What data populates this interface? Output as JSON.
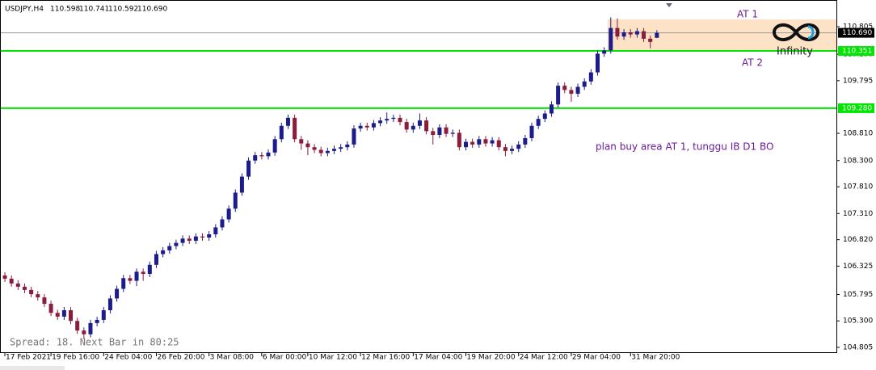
{
  "chart_data": {
    "type": "candlestick",
    "title": "USDJPY,H4",
    "last_bar": [
      "110.598",
      "110.741",
      "110.592",
      "110.690"
    ],
    "up_color": "#1c1c8c",
    "down_color": "#8b1c3c",
    "open": [
      106.15,
      106.09,
      106.0,
      105.94,
      105.88,
      105.8,
      105.74,
      105.62,
      105.45,
      105.38,
      105.5,
      105.3,
      105.12,
      105.05,
      105.26,
      105.32,
      105.5,
      105.72,
      105.9,
      106.1,
      106.05,
      106.22,
      106.18,
      106.35,
      106.55,
      106.62,
      106.7,
      106.76,
      106.84,
      106.8,
      106.88,
      106.86,
      106.92,
      107.05,
      107.2,
      107.4,
      107.7,
      108.0,
      108.3,
      108.4,
      108.38,
      108.45,
      108.7,
      108.95,
      109.1,
      108.7,
      108.62,
      108.55,
      108.5,
      108.44,
      108.48,
      108.52,
      108.55,
      108.6,
      108.9,
      108.95,
      108.92,
      109.0,
      109.05,
      109.08,
      109.1,
      109.02,
      108.88,
      108.95,
      109.05,
      108.85,
      108.78,
      108.92,
      108.8,
      108.82,
      108.55,
      108.65,
      108.6,
      108.7,
      108.62,
      108.68,
      108.55,
      108.48,
      108.52,
      108.6,
      108.72,
      108.95,
      109.08,
      109.18,
      109.35,
      109.7,
      109.62,
      109.55,
      109.68,
      109.78,
      109.95,
      110.3,
      110.36,
      110.78,
      110.62,
      110.7,
      110.66,
      110.72,
      110.58,
      110.598
    ],
    "high": [
      106.21,
      106.15,
      106.06,
      106.0,
      105.94,
      105.86,
      105.8,
      105.68,
      105.51,
      105.56,
      105.56,
      105.36,
      105.18,
      105.32,
      105.38,
      105.56,
      105.78,
      105.96,
      106.16,
      106.16,
      106.28,
      106.28,
      106.41,
      106.61,
      106.68,
      106.76,
      106.82,
      106.9,
      106.9,
      106.94,
      106.94,
      106.98,
      107.11,
      107.26,
      107.46,
      107.76,
      108.06,
      108.36,
      108.46,
      108.46,
      108.51,
      108.76,
      109.01,
      109.16,
      109.16,
      108.76,
      108.68,
      108.61,
      108.56,
      108.54,
      108.58,
      108.61,
      108.66,
      108.96,
      109.01,
      109.01,
      109.06,
      109.11,
      109.2,
      109.16,
      109.16,
      109.08,
      109.01,
      109.18,
      109.11,
      108.91,
      108.98,
      108.98,
      108.88,
      108.88,
      108.71,
      108.71,
      108.76,
      108.76,
      108.74,
      108.74,
      108.61,
      108.58,
      108.66,
      108.78,
      109.01,
      109.14,
      109.24,
      109.41,
      109.76,
      109.76,
      109.68,
      109.74,
      109.84,
      110.01,
      110.36,
      110.42,
      110.98,
      110.96,
      110.76,
      110.76,
      110.78,
      110.78,
      110.64,
      110.741
    ],
    "low": [
      106.03,
      105.94,
      105.88,
      105.82,
      105.74,
      105.68,
      105.56,
      105.39,
      105.32,
      105.32,
      105.24,
      105.06,
      104.96,
      104.99,
      105.2,
      105.26,
      105.44,
      105.66,
      105.84,
      105.99,
      105.95,
      106.05,
      106.12,
      106.29,
      106.49,
      106.56,
      106.64,
      106.7,
      106.74,
      106.74,
      106.8,
      106.8,
      106.86,
      106.99,
      107.14,
      107.34,
      107.64,
      107.94,
      108.24,
      108.32,
      108.32,
      108.39,
      108.64,
      108.89,
      108.64,
      108.5,
      108.4,
      108.44,
      108.38,
      108.38,
      108.42,
      108.46,
      108.49,
      108.54,
      108.84,
      108.86,
      108.86,
      108.94,
      108.99,
      109.02,
      108.96,
      108.82,
      108.82,
      108.89,
      108.79,
      108.6,
      108.72,
      108.74,
      108.74,
      108.49,
      108.49,
      108.54,
      108.54,
      108.56,
      108.56,
      108.49,
      108.38,
      108.42,
      108.46,
      108.54,
      108.66,
      108.89,
      109.02,
      109.12,
      109.29,
      109.56,
      109.4,
      109.49,
      109.62,
      109.72,
      109.89,
      110.24,
      110.3,
      110.56,
      110.56,
      110.6,
      110.6,
      110.52,
      110.4,
      110.592
    ],
    "close": [
      106.09,
      106.0,
      105.94,
      105.88,
      105.8,
      105.74,
      105.62,
      105.45,
      105.38,
      105.5,
      105.3,
      105.12,
      105.05,
      105.26,
      105.32,
      105.5,
      105.72,
      105.9,
      106.1,
      106.05,
      106.22,
      106.18,
      106.35,
      106.55,
      106.62,
      106.7,
      106.76,
      106.84,
      106.8,
      106.88,
      106.86,
      106.92,
      107.05,
      107.2,
      107.4,
      107.7,
      108.0,
      108.3,
      108.4,
      108.38,
      108.45,
      108.7,
      108.95,
      109.1,
      108.7,
      108.62,
      108.55,
      108.5,
      108.44,
      108.48,
      108.52,
      108.55,
      108.6,
      108.9,
      108.95,
      108.92,
      109.0,
      109.05,
      109.08,
      109.1,
      109.02,
      108.88,
      108.95,
      109.05,
      108.85,
      108.78,
      108.92,
      108.8,
      108.82,
      108.55,
      108.65,
      108.6,
      108.7,
      108.62,
      108.68,
      108.55,
      108.48,
      108.52,
      108.6,
      108.72,
      108.95,
      109.08,
      109.18,
      109.35,
      109.7,
      109.62,
      109.55,
      109.68,
      109.78,
      109.95,
      110.3,
      110.36,
      110.78,
      110.62,
      110.7,
      110.66,
      110.72,
      110.58,
      110.52,
      110.69
    ],
    "xlim": [
      -0.74,
      126.26
    ],
    "xticks": [
      {
        "value": 0,
        "label": "17 Feb 2021"
      },
      {
        "value": 7,
        "label": "19 Feb 16:00"
      },
      {
        "value": 15,
        "label": "24 Feb 04:00"
      },
      {
        "value": 23,
        "label": "26 Feb 20:00"
      },
      {
        "value": 31,
        "label": "3 Mar 08:00"
      },
      {
        "value": 39,
        "label": "6 Mar 00:00"
      },
      {
        "value": 46,
        "label": "10 Mar 12:00"
      },
      {
        "value": 54,
        "label": "12 Mar 16:00"
      },
      {
        "value": 62,
        "label": "17 Mar 04:00"
      },
      {
        "value": 70,
        "label": "19 Mar 20:00"
      },
      {
        "value": 78,
        "label": "24 Mar 12:00"
      },
      {
        "value": 86,
        "label": "29 Mar 04:00"
      },
      {
        "value": 95,
        "label": "31 Mar 20:00"
      }
    ],
    "ylim": [
      104.699,
      111.304
    ],
    "yticks": [
      110.805,
      {
        "value": 110.29,
        "label": "110.290"
      },
      109.795,
      {
        "value": 108.81,
        "label": "108.810"
      },
      {
        "value": 108.3,
        "label": "108.300"
      },
      {
        "value": 107.81,
        "label": "107.810"
      },
      {
        "value": 107.31,
        "label": "107.310"
      },
      {
        "value": 106.82,
        "label": "106.820"
      },
      106.325,
      105.795,
      {
        "value": 105.3,
        "label": "105.300"
      },
      104.805
    ],
    "zone": {
      "low": 110.351,
      "high": 110.94,
      "start": 91.5,
      "color": "#fde2c6"
    },
    "levels": [
      {
        "value": 110.69,
        "label": "110.690",
        "color": "#9a9a9a",
        "box": "#000000",
        "text_color": "#ffffff"
      },
      {
        "value": 110.351,
        "label": "110.351",
        "color": "#00e600",
        "box": "#00e600",
        "text_color": "#ffffff"
      },
      {
        "value": 109.28,
        "label": "109.280",
        "color": "#00e600",
        "box": "#00e600",
        "text_color": "#ffffff"
      }
    ],
    "annotations": [
      "AT 1",
      "AT 2",
      "plan buy area AT 1, tunggu IB D1 BO"
    ],
    "logo": "Infinity",
    "footer": "Spread: 18. Next Bar in 80:25"
  }
}
